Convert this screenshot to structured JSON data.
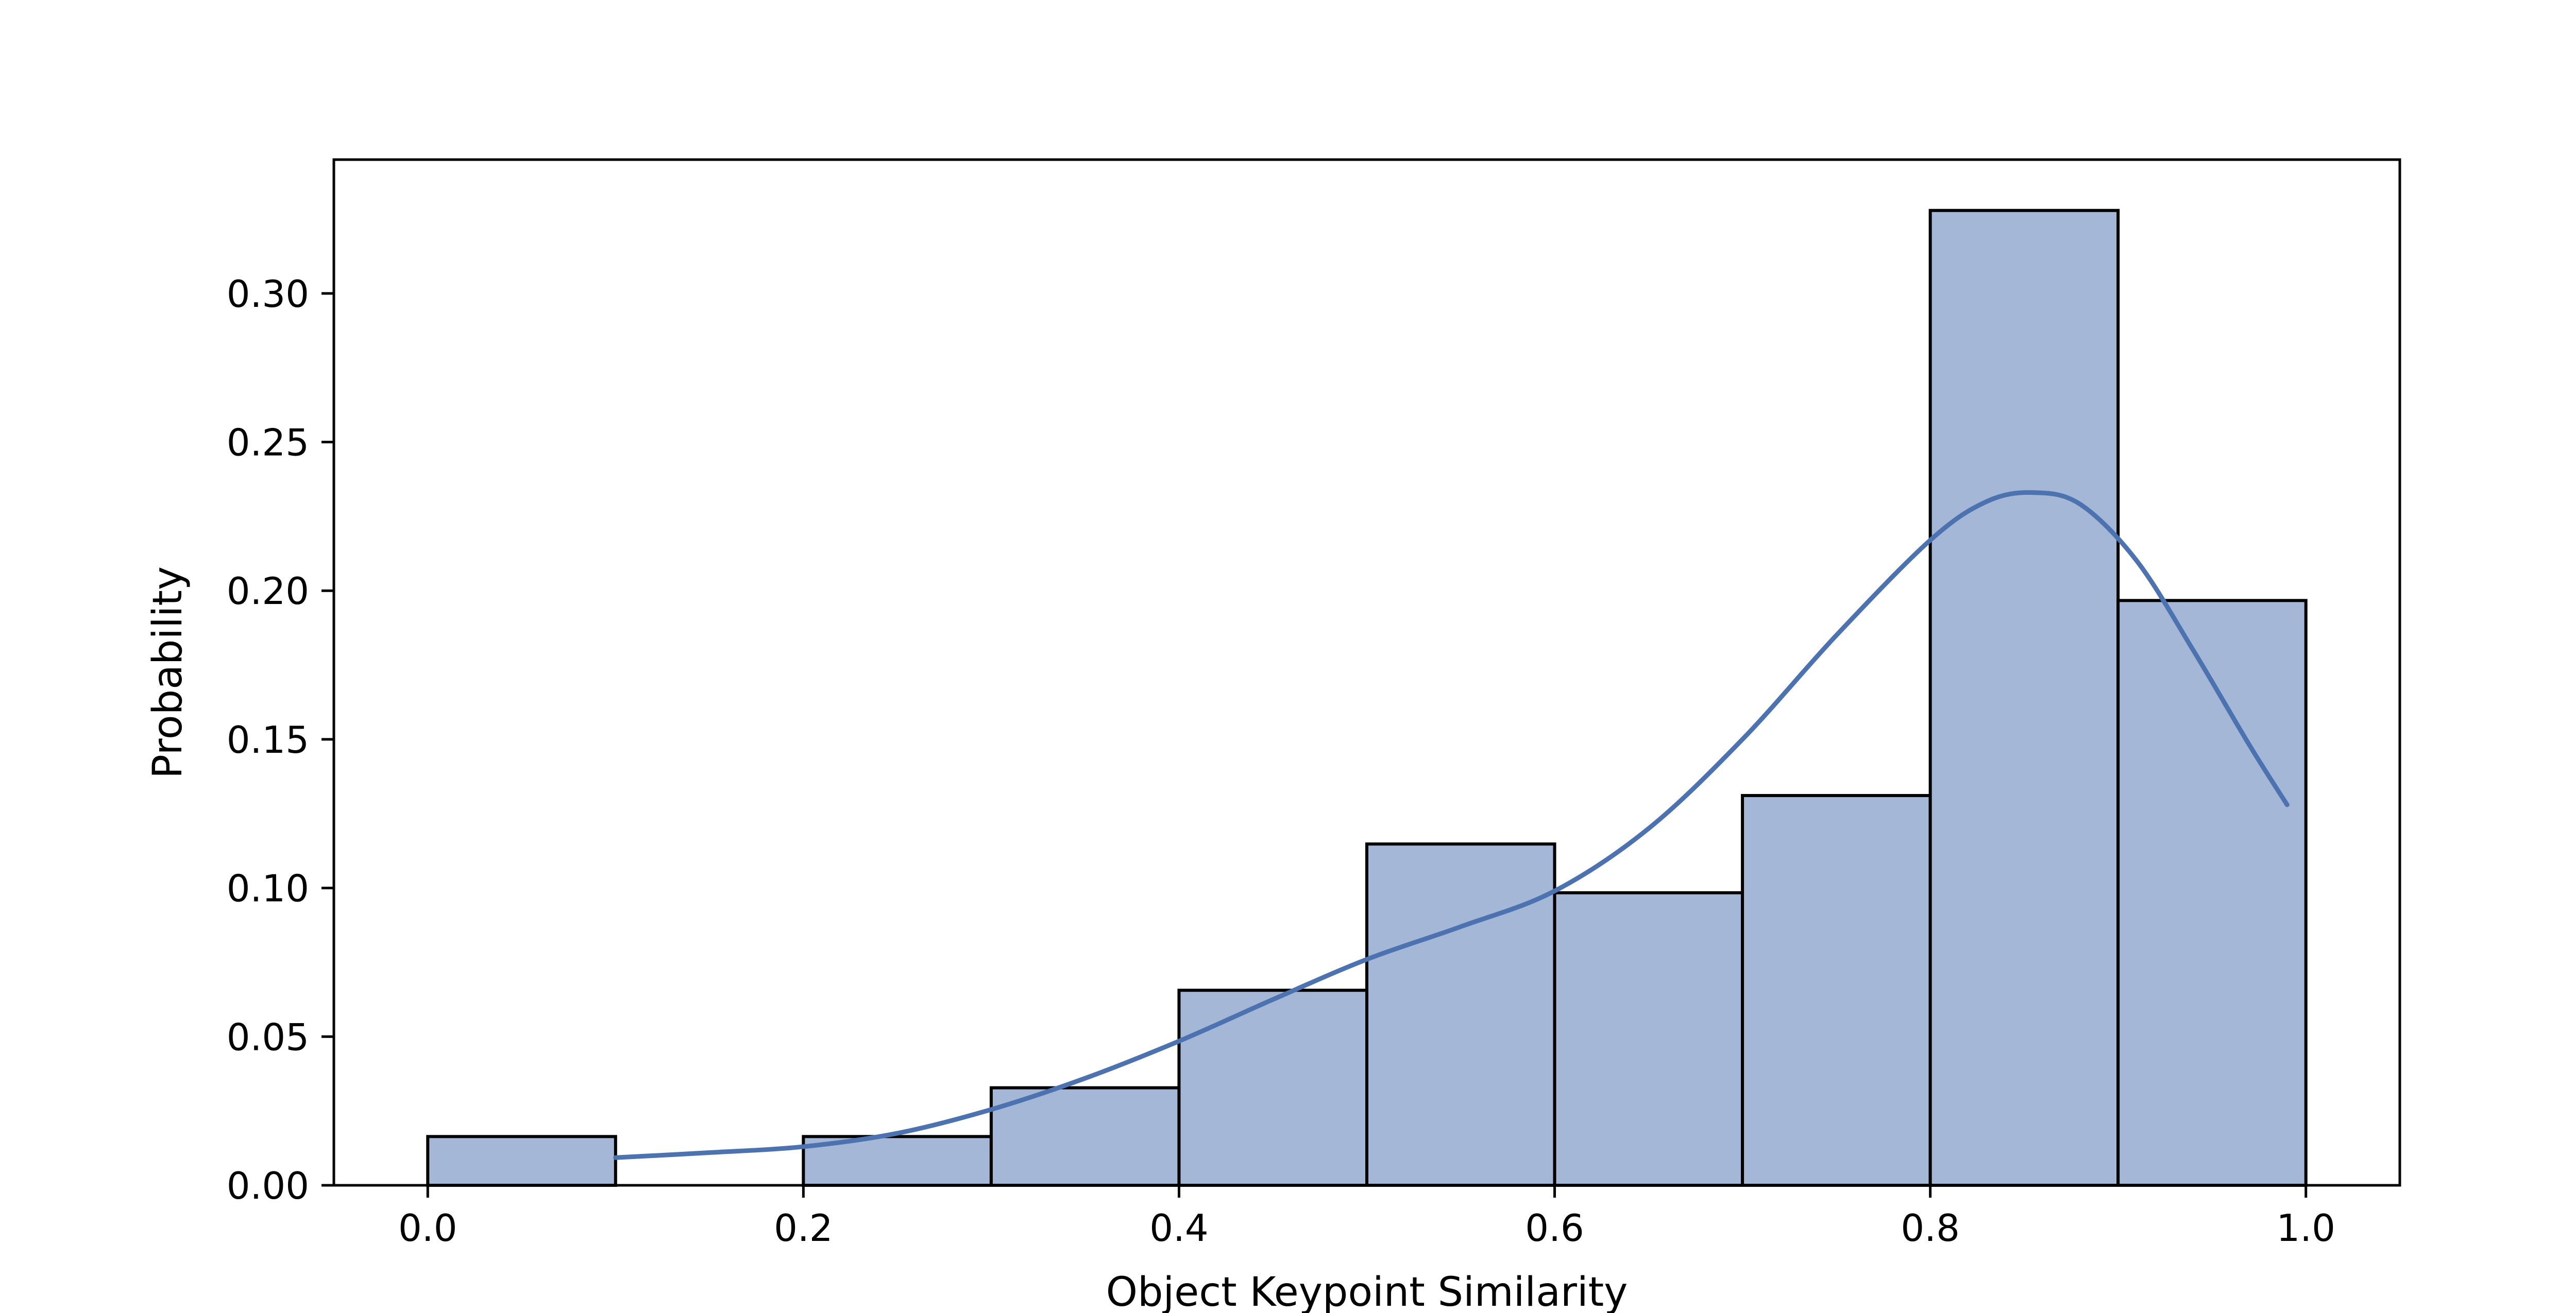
{
  "chart_data": {
    "type": "bar",
    "title": "",
    "xlabel": "Object Keypoint Similarity",
    "ylabel": "Probability",
    "xlim": [
      -0.05,
      1.05
    ],
    "ylim": [
      0,
      0.345
    ],
    "xticks": [
      0.0,
      0.2,
      0.4,
      0.6,
      0.8,
      1.0
    ],
    "xtick_labels": [
      "0.0",
      "0.2",
      "0.4",
      "0.6",
      "0.8",
      "1.0"
    ],
    "yticks": [
      0.0,
      0.05,
      0.1,
      0.15,
      0.2,
      0.25,
      0.3
    ],
    "ytick_labels": [
      "0.00",
      "0.05",
      "0.10",
      "0.15",
      "0.20",
      "0.25",
      "0.30"
    ],
    "grid": false,
    "legend": "none",
    "bins": [
      {
        "x0": 0.0,
        "x1": 0.1,
        "value": 0.0164
      },
      {
        "x0": 0.1,
        "x1": 0.2,
        "value": 0.0
      },
      {
        "x0": 0.2,
        "x1": 0.3,
        "value": 0.0164
      },
      {
        "x0": 0.3,
        "x1": 0.4,
        "value": 0.0328
      },
      {
        "x0": 0.4,
        "x1": 0.5,
        "value": 0.0656
      },
      {
        "x0": 0.5,
        "x1": 0.6,
        "value": 0.1148
      },
      {
        "x0": 0.6,
        "x1": 0.7,
        "value": 0.0984
      },
      {
        "x0": 0.7,
        "x1": 0.8,
        "value": 0.1311
      },
      {
        "x0": 0.8,
        "x1": 0.9,
        "value": 0.3279
      },
      {
        "x0": 0.9,
        "x1": 1.0,
        "value": 0.1967
      }
    ],
    "kde": {
      "x": [
        0.1,
        0.15,
        0.2,
        0.25,
        0.3,
        0.35,
        0.4,
        0.45,
        0.5,
        0.55,
        0.6,
        0.65,
        0.7,
        0.75,
        0.8,
        0.83,
        0.855,
        0.88,
        0.91,
        0.94,
        0.97,
        0.99
      ],
      "y": [
        0.0093,
        0.011,
        0.013,
        0.0175,
        0.0255,
        0.036,
        0.0485,
        0.0625,
        0.076,
        0.087,
        0.099,
        0.12,
        0.15,
        0.185,
        0.217,
        0.23,
        0.233,
        0.229,
        0.21,
        0.18,
        0.148,
        0.128
      ]
    },
    "colors": {
      "bar_fill": "#a5b7d7",
      "bar_edge": "#000000",
      "kde_line": "#4c72b0",
      "axes": "#000000"
    }
  }
}
